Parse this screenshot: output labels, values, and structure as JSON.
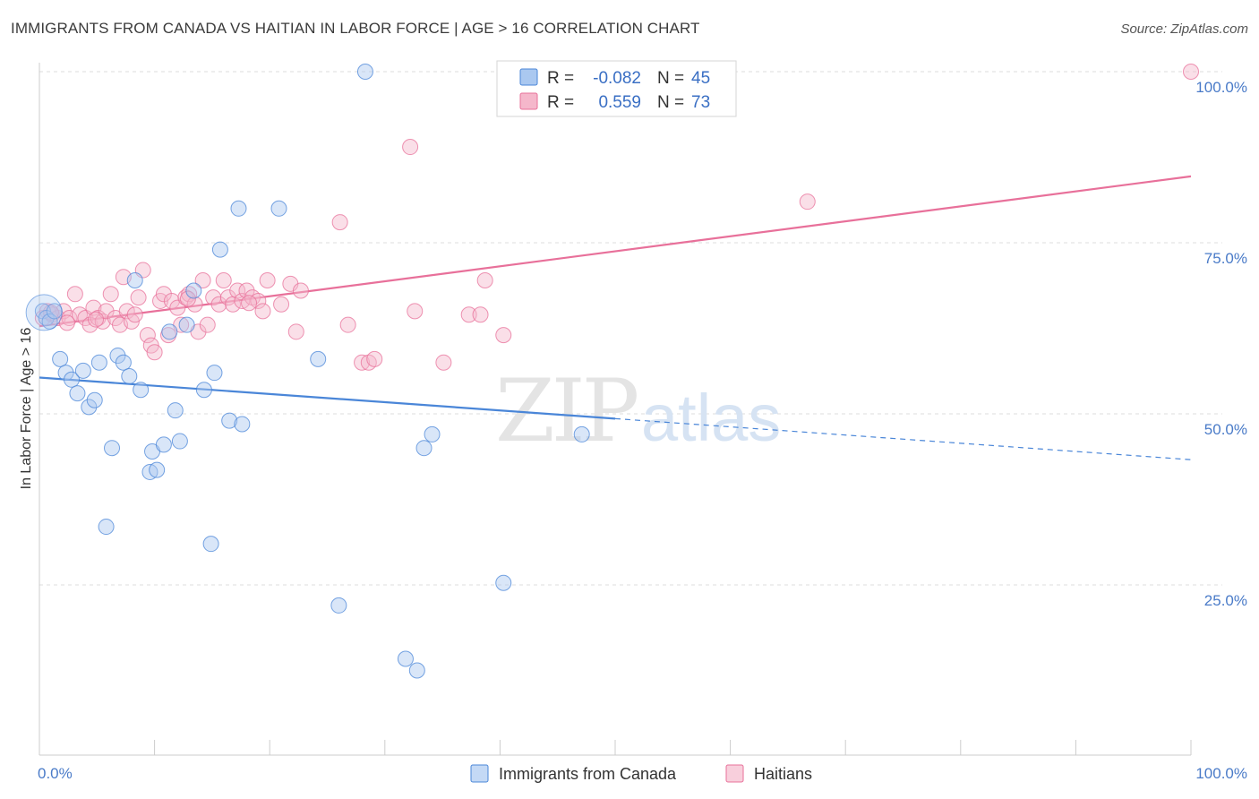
{
  "header": {
    "title": "IMMIGRANTS FROM CANADA VS HAITIAN IN LABOR FORCE | AGE > 16 CORRELATION CHART",
    "source": "Source: ZipAtlas.com"
  },
  "watermark": {
    "zip": "ZIP",
    "atlas": "atlas"
  },
  "colors": {
    "blue": "#4a86d8",
    "blue_fill": "#aac8f0",
    "pink": "#e8709a",
    "pink_fill": "#f5b7cb",
    "grid": "#dddddd",
    "tick_text": "#4a7bc8"
  },
  "legend": {
    "rows": [
      {
        "r_label": "R =",
        "r_value": "-0.082",
        "n_label": "N =",
        "n_value": "45"
      },
      {
        "r_label": "R =",
        "r_value": "0.559",
        "n_label": "N =",
        "n_value": "73"
      }
    ]
  },
  "chart_data": {
    "type": "scatter",
    "title": "IMMIGRANTS FROM CANADA VS HAITIAN IN LABOR FORCE | AGE > 16 CORRELATION CHART",
    "xlabel": "",
    "ylabel": "In Labor Force | Age > 16",
    "xlim": [
      0,
      100
    ],
    "ylim": [
      0,
      102
    ],
    "x_tick_labels": [
      "0.0%",
      "100.0%"
    ],
    "y_ticks": [
      25,
      50,
      75,
      100
    ],
    "y_tick_labels": [
      "25.0%",
      "50.0%",
      "75.0%",
      "100.0%"
    ],
    "grid": true,
    "legend_position": "bottom",
    "series": [
      {
        "name": "Immigrants from Canada",
        "color": "#4a86d8",
        "r": -0.082,
        "n": 45,
        "trend": {
          "x_start": 0,
          "y_start": 55.3,
          "x_solid_end": 50,
          "y_solid_end": 49.3,
          "x_end": 100,
          "y_end": 43.3
        },
        "points": [
          [
            0.3,
            65
          ],
          [
            0.6,
            64
          ],
          [
            0.9,
            63.5
          ],
          [
            1.3,
            65
          ],
          [
            1.8,
            58
          ],
          [
            2.3,
            56
          ],
          [
            2.8,
            55
          ],
          [
            3.3,
            53
          ],
          [
            3.8,
            56.3
          ],
          [
            4.3,
            51
          ],
          [
            4.8,
            52
          ],
          [
            5.2,
            57.5
          ],
          [
            6.3,
            45
          ],
          [
            5.8,
            33.5
          ],
          [
            6.8,
            58.5
          ],
          [
            7.3,
            57.5
          ],
          [
            7.8,
            55.5
          ],
          [
            8.3,
            69.5
          ],
          [
            8.8,
            53.5
          ],
          [
            9.6,
            41.5
          ],
          [
            9.8,
            44.5
          ],
          [
            10.2,
            41.8
          ],
          [
            10.8,
            45.5
          ],
          [
            11.3,
            62
          ],
          [
            11.8,
            50.5
          ],
          [
            12.2,
            46
          ],
          [
            12.8,
            63
          ],
          [
            13.4,
            68
          ],
          [
            14.3,
            53.5
          ],
          [
            14.9,
            31
          ],
          [
            15.2,
            56
          ],
          [
            15.7,
            74
          ],
          [
            16.5,
            49
          ],
          [
            17.3,
            80
          ],
          [
            17.6,
            48.5
          ],
          [
            20.8,
            80
          ],
          [
            24.2,
            58
          ],
          [
            26.0,
            22
          ],
          [
            28.3,
            100
          ],
          [
            31.8,
            14.2
          ],
          [
            32.8,
            12.5
          ],
          [
            33.4,
            45
          ],
          [
            34.1,
            47
          ],
          [
            40.3,
            25.3
          ],
          [
            47.1,
            47
          ]
        ]
      },
      {
        "name": "Haitians",
        "color": "#e8709a",
        "r": 0.559,
        "n": 73,
        "trend": {
          "x_start": 0,
          "y_start": 62.8,
          "x_end": 100,
          "y_end": 84.7
        },
        "points": [
          [
            0.3,
            64
          ],
          [
            0.7,
            65
          ],
          [
            1.1,
            64.5
          ],
          [
            1.6,
            64
          ],
          [
            2.1,
            65
          ],
          [
            2.6,
            64
          ],
          [
            3.1,
            67.5
          ],
          [
            3.5,
            64.5
          ],
          [
            4.0,
            64
          ],
          [
            4.4,
            63
          ],
          [
            4.7,
            65.5
          ],
          [
            5.1,
            64
          ],
          [
            5.5,
            63.5
          ],
          [
            5.8,
            65
          ],
          [
            6.2,
            67.5
          ],
          [
            6.6,
            64
          ],
          [
            7.0,
            63
          ],
          [
            7.3,
            70
          ],
          [
            7.6,
            65
          ],
          [
            8.0,
            63.5
          ],
          [
            8.3,
            64.5
          ],
          [
            8.6,
            67
          ],
          [
            9.0,
            71
          ],
          [
            9.4,
            61.5
          ],
          [
            9.7,
            60
          ],
          [
            10.0,
            59
          ],
          [
            10.5,
            66.5
          ],
          [
            10.8,
            67.5
          ],
          [
            11.2,
            61.5
          ],
          [
            11.5,
            66.5
          ],
          [
            12.0,
            65.5
          ],
          [
            12.3,
            63
          ],
          [
            12.7,
            67
          ],
          [
            13.0,
            67.5
          ],
          [
            13.5,
            66
          ],
          [
            13.8,
            62
          ],
          [
            14.2,
            69.5
          ],
          [
            14.6,
            63
          ],
          [
            15.1,
            67
          ],
          [
            15.6,
            66
          ],
          [
            16.0,
            69.5
          ],
          [
            16.4,
            67
          ],
          [
            16.8,
            66
          ],
          [
            17.2,
            68
          ],
          [
            17.6,
            66.5
          ],
          [
            18.0,
            68
          ],
          [
            18.5,
            67
          ],
          [
            19.0,
            66.5
          ],
          [
            19.4,
            65
          ],
          [
            19.8,
            69.5
          ],
          [
            21.0,
            66
          ],
          [
            21.8,
            69
          ],
          [
            22.3,
            62
          ],
          [
            22.7,
            68
          ],
          [
            26.1,
            78
          ],
          [
            26.8,
            63
          ],
          [
            28.0,
            57.5
          ],
          [
            28.6,
            57.5
          ],
          [
            29.1,
            58
          ],
          [
            32.2,
            89
          ],
          [
            32.6,
            65
          ],
          [
            35.1,
            57.5
          ],
          [
            37.3,
            64.5
          ],
          [
            38.3,
            64.5
          ],
          [
            38.7,
            69.5
          ],
          [
            40.3,
            61.5
          ],
          [
            66.7,
            81
          ],
          [
            100,
            100
          ],
          [
            1.0,
            64.8
          ],
          [
            2.4,
            63.3
          ],
          [
            4.9,
            63.8
          ],
          [
            12.9,
            66.8
          ],
          [
            18.2,
            66.2
          ]
        ]
      }
    ]
  }
}
